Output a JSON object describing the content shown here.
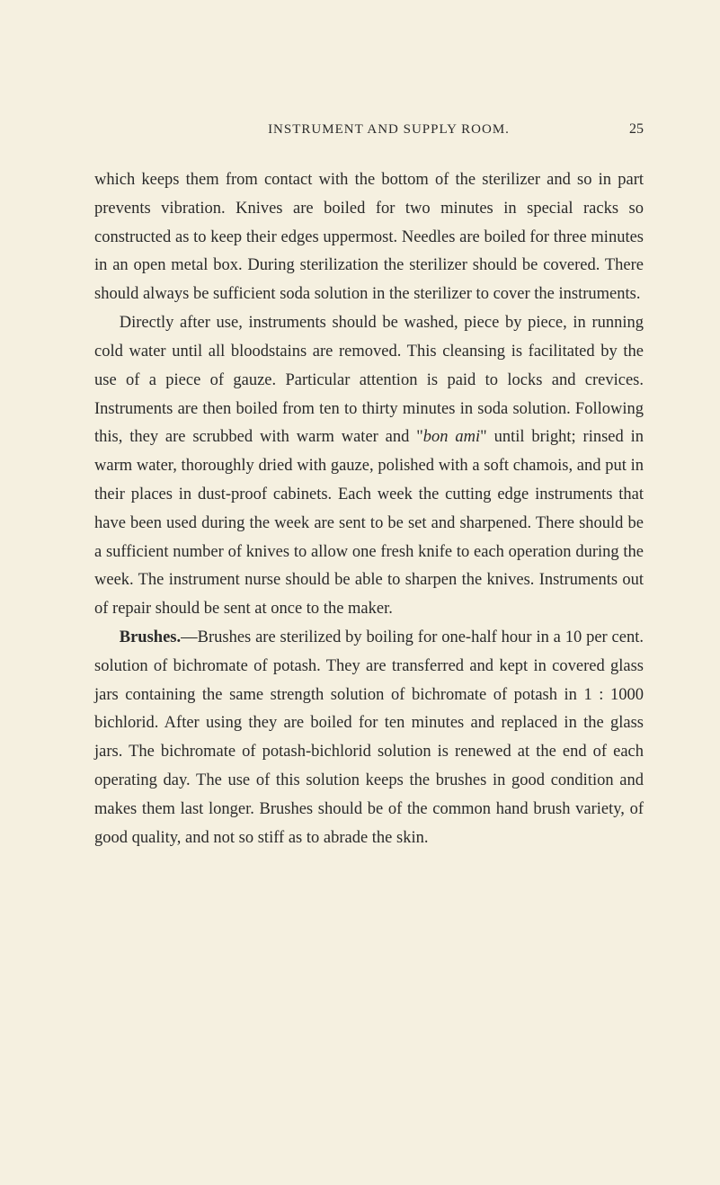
{
  "header": {
    "running_head": "INSTRUMENT AND SUPPLY ROOM.",
    "page_number": "25"
  },
  "paragraphs": {
    "p1_pre": "which keeps them from contact with the bottom of the sterilizer and so in part prevents vibration. Knives are boiled for two minutes in special racks so constructed as to keep their edges uppermost. Needles are boiled for three minutes in an open metal box. During sterilization the sterilizer should be covered. There should always be sufficient soda solution in the sterilizer to cover the instruments.",
    "p2_pre": "Directly after use, instruments should be washed, piece by piece, in running cold water until all bloodstains are removed. This cleansing is facilitated by the use of a piece of gauze. Particular attention is paid to locks and crevices. Instruments are then boiled from ten to thirty minutes in soda solution. Following this, they are scrubbed with warm water and \"",
    "p2_italic": "bon ami",
    "p2_post": "\" until bright; rinsed in warm water, thoroughly dried with gauze, polished with a soft chamois, and put in their places in dust-proof cabinets. Each week the cutting edge instruments that have been used during the week are sent to be set and sharpened. There should be a sufficient number of knives to allow one fresh knife to each operation during the week. The instrument nurse should be able to sharpen the knives. Instruments out of repair should be sent at once to the maker.",
    "p3_bold": "Brushes.",
    "p3_post": "—Brushes are sterilized by boiling for one-half hour in a 10 per cent. solution of bichromate of potash. They are transferred and kept in covered glass jars containing the same strength solution of bichromate of potash in 1 : 1000 bichlorid. After using they are boiled for ten minutes and replaced in the glass jars. The bichromate of potash-bichlorid solution is renewed at the end of each operating day. The use of this solution keeps the brushes in good condition and makes them last longer. Brushes should be of the common hand brush variety, of good quality, and not so stiff as to abrade the skin."
  },
  "styling": {
    "background_color": "#f5f0e0",
    "text_color": "#2a2a2a",
    "body_fontsize": 18.5,
    "line_height": 1.72,
    "header_fontsize": 15,
    "pagenum_fontsize": 16
  }
}
